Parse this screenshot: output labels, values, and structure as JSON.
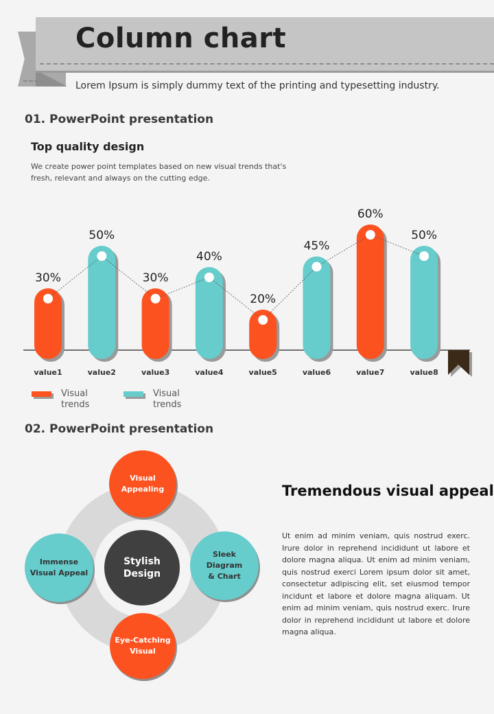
{
  "header": {
    "title": "Column chart",
    "subtitle": "Lorem Ipsum is simply dummy text of the printing and typesetting industry."
  },
  "section1": {
    "title": "01. PowerPoint presentation",
    "heading": "Top quality design",
    "description": "We create power point templates based on new visual trends that's fresh, relevant and always on the cutting edge."
  },
  "colors": {
    "orange": "#fc5220",
    "teal": "#66cccc",
    "dark": "#404040",
    "bookmark": "#3b2a17"
  },
  "chart_data": {
    "type": "bar",
    "title": "",
    "xlabel": "",
    "ylabel": "",
    "ylim": [
      0,
      60
    ],
    "grid": false,
    "categories": [
      "value1",
      "value2",
      "value3",
      "value4",
      "value5",
      "value6",
      "value7",
      "value8"
    ],
    "values": [
      30,
      50,
      30,
      40,
      20,
      45,
      60,
      50
    ],
    "data_labels": [
      "30%",
      "50%",
      "30%",
      "40%",
      "20%",
      "45%",
      "60%",
      "50%"
    ],
    "bar_colors": [
      "orange",
      "teal",
      "orange",
      "teal",
      "orange",
      "teal",
      "orange",
      "teal"
    ],
    "trend_line": true,
    "legend": {
      "placement": "bottom-left",
      "entries": [
        {
          "label": "Visual trends",
          "color": "orange"
        },
        {
          "label": "Visual trends",
          "color": "teal"
        }
      ]
    }
  },
  "section2": {
    "title": "02. PowerPoint presentation",
    "diagram": {
      "center": "Stylish\nDesign",
      "top": "Visual\nAppealing",
      "right": "Sleek\nDiagram\n& Chart",
      "bottom": "Eye-Catching\nVisual",
      "left": "Immense\nVisual Appeal"
    },
    "heading": "Tremendous visual appeal",
    "body": "Ut enim ad minim veniam, quis nostrud exerc. Irure dolor in reprehend incididunt ut labore et dolore magna aliqua. Ut enim ad minim veniam, quis nostrud exerci Lorem ipsum dolor sit amet, consectetur adipiscing elit, set eiusmod tempor incidunt et labore et dolore magna aliquam. Ut enim ad minim veniam, quis nostrud exerc. Irure dolor in reprehend incididunt ut labore et dolore magna aliqua."
  }
}
